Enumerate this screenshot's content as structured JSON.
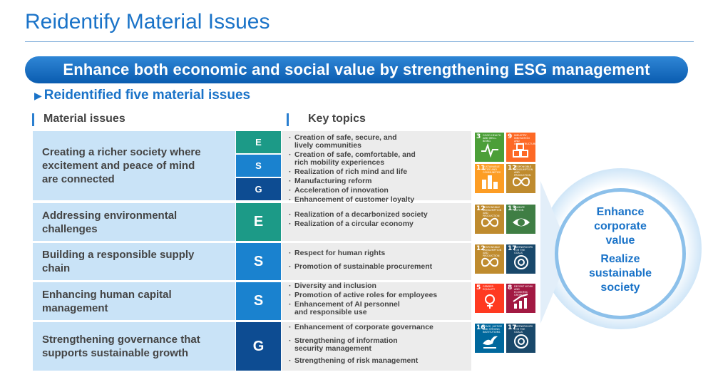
{
  "page": {
    "title": "Reidentify Material Issues",
    "banner": "Enhance both economic and social value by strengthening ESG management",
    "subheading": "Reidentified five material issues",
    "subheading_marker": "▶"
  },
  "columns": {
    "material_issues": "Material issues",
    "key_topics": "Key topics"
  },
  "colors": {
    "E": "#1c9a87",
    "S": "#1a82cf",
    "G": "#0d4c92",
    "title": "#1a73c8"
  },
  "issues": [
    {
      "title_lines": [
        "Creating a richer society where",
        "excitement and peace of mind",
        "are connected"
      ],
      "esg": [
        "E",
        "S",
        "G"
      ],
      "topics": [
        [
          "Creation of safe, secure, and",
          "lively communities"
        ],
        [
          "Creation of safe, comfortable, and",
          "rich mobility experiences"
        ],
        [
          "Realization of rich mind and life"
        ],
        [
          "Manufacturing reform"
        ],
        [
          "Acceleration of innovation"
        ],
        [
          "Enhancement of customer loyalty"
        ]
      ],
      "sdgs": [
        3,
        9,
        11,
        12
      ]
    },
    {
      "title_lines": [
        "Addressing environmental",
        "challenges"
      ],
      "esg": [
        "E"
      ],
      "topics": [
        [
          "Realization of a decarbonized society"
        ],
        [
          "Realization of a circular economy"
        ]
      ],
      "sdgs": [
        12,
        13
      ]
    },
    {
      "title_lines": [
        "Building a responsible supply",
        "chain"
      ],
      "esg": [
        "S"
      ],
      "topics": [
        [
          "Respect for human rights"
        ],
        [
          "Promotion of sustainable procurement"
        ]
      ],
      "sdgs": [
        12,
        17
      ]
    },
    {
      "title_lines": [
        "Enhancing human capital",
        "management"
      ],
      "esg": [
        "S"
      ],
      "topics": [
        [
          "Diversity and inclusion"
        ],
        [
          "Promotion of active roles for employees"
        ],
        [
          "Enhancement of AI personnel",
          "and responsible use"
        ]
      ],
      "sdgs": [
        5,
        8
      ]
    },
    {
      "title_lines": [
        "Strengthening governance that",
        "supports sustainable growth"
      ],
      "esg": [
        "G"
      ],
      "topics": [
        [
          "Enhancement of corporate governance"
        ],
        [
          "Strengthening of information",
          "security management"
        ],
        [
          "Strengthening of risk management"
        ]
      ],
      "sdgs": [
        16,
        17
      ]
    }
  ],
  "sdg_goals": {
    "3": {
      "label": "Good health and well-being",
      "color": "#4c9f38",
      "icon": "heartbeat-icon"
    },
    "5": {
      "label": "Gender equality",
      "color": "#ff3a21",
      "icon": "gender-icon"
    },
    "8": {
      "label": "Decent work and economic growth",
      "color": "#a21942",
      "icon": "growth-chart-icon"
    },
    "9": {
      "label": "Industry, innovation and infrastructure",
      "color": "#fd6925",
      "icon": "cubes-icon"
    },
    "11": {
      "label": "Sustainable cities and communities",
      "color": "#fd9d24",
      "icon": "city-icon"
    },
    "12": {
      "label": "Responsible consumption and production",
      "color": "#bf8b2e",
      "icon": "infinity-icon"
    },
    "13": {
      "label": "Climate action",
      "color": "#3f7e44",
      "icon": "eye-globe-icon"
    },
    "16": {
      "label": "Peace, justice and strong institutions",
      "color": "#00689d",
      "icon": "dove-icon"
    },
    "17": {
      "label": "Partnerships for the goals",
      "color": "#19486a",
      "icon": "flower-icon"
    }
  },
  "outcome": {
    "line1": "Enhance",
    "line2": "corporate",
    "line3": "value",
    "line4": "Realize",
    "line5": "sustainable",
    "line6": "society"
  }
}
